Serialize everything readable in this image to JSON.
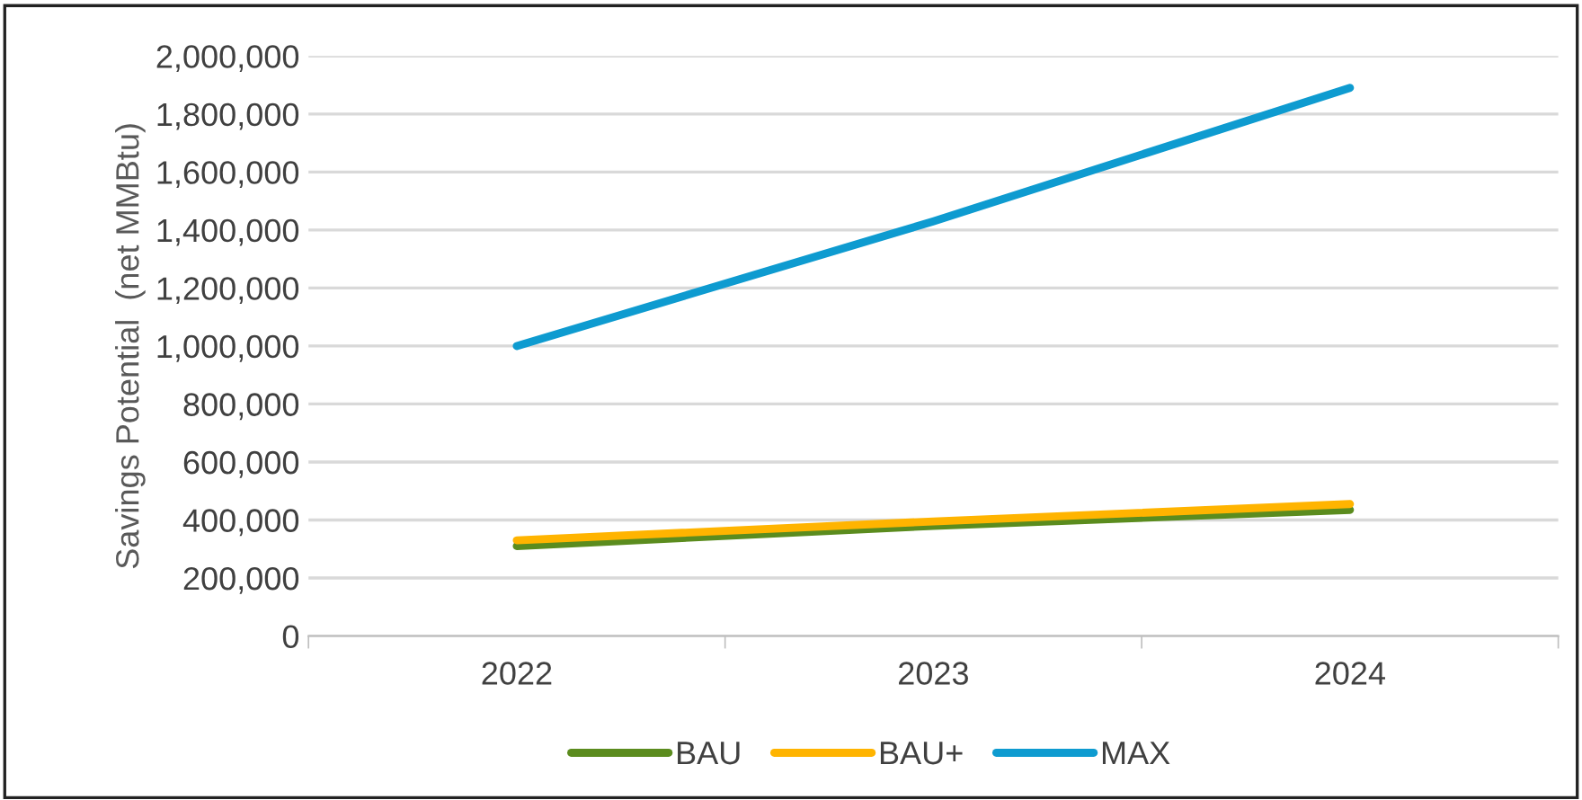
{
  "chart_data": {
    "type": "line",
    "ylabel": "Savings Potential  (net MMBtu)",
    "categories": [
      "2022",
      "2023",
      "2024"
    ],
    "series": [
      {
        "name": "BAU",
        "color": "#5b8c1e",
        "values": [
          310000,
          380000,
          435000
        ]
      },
      {
        "name": "BAU+",
        "color": "#ffb400",
        "values": [
          330000,
          395000,
          455000
        ]
      },
      {
        "name": "MAX",
        "color": "#0e9bd0",
        "values": [
          1000000,
          1430000,
          1890000
        ]
      }
    ],
    "ylim": [
      0,
      2000000
    ],
    "yticks": [
      {
        "value": 0,
        "label": "0"
      },
      {
        "value": 200000,
        "label": "200,000"
      },
      {
        "value": 400000,
        "label": "400,000"
      },
      {
        "value": 600000,
        "label": "600,000"
      },
      {
        "value": 800000,
        "label": "800,000"
      },
      {
        "value": 1000000,
        "label": "1,000,000"
      },
      {
        "value": 1200000,
        "label": "1,200,000"
      },
      {
        "value": 1400000,
        "label": "1,400,000"
      },
      {
        "value": 1600000,
        "label": "1,600,000"
      },
      {
        "value": 1800000,
        "label": "1,800,000"
      },
      {
        "value": 2000000,
        "label": "2,000,000"
      }
    ],
    "grid": "y",
    "legend": "bottom",
    "marker": "none",
    "line_style": "solid"
  }
}
